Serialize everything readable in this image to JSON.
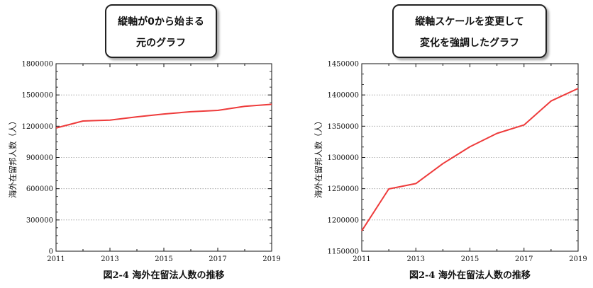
{
  "callouts": {
    "left": [
      "縦軸が0から始まる",
      "元のグラフ"
    ],
    "right": [
      "縦軸スケールを変更して",
      "変化を強調したグラフ"
    ]
  },
  "chart_data": [
    {
      "type": "line",
      "callout": "縦軸が0から始まる元のグラフ",
      "caption": "図2-4  海外在留法人数の推移",
      "ylabel": "海外在留邦人数（人）",
      "x": [
        2011,
        2012,
        2013,
        2014,
        2015,
        2016,
        2017,
        2018,
        2019
      ],
      "xticks": [
        "2011",
        "2013",
        "2015",
        "2017",
        "2019"
      ],
      "xlim": [
        2011,
        2019
      ],
      "ylim": [
        0,
        1800000
      ],
      "yticks": [
        0,
        300000,
        600000,
        900000,
        1200000,
        1500000,
        1800000
      ],
      "yminor_per_major": 3,
      "grid": true,
      "series": [
        {
          "values": [
            1182557,
            1249577,
            1258263,
            1290175,
            1317078,
            1338477,
            1351970,
            1390370,
            1410356
          ],
          "color": "#ee3b3b"
        }
      ]
    },
    {
      "type": "line",
      "callout": "縦軸スケールを変更して変化を強調したグラフ",
      "caption": "図2-4  海外在留法人数の推移",
      "ylabel": "海外在留邦人数（人）",
      "x": [
        2011,
        2012,
        2013,
        2014,
        2015,
        2016,
        2017,
        2018,
        2019
      ],
      "xticks": [
        "2011",
        "2013",
        "2015",
        "2017",
        "2019"
      ],
      "xlim": [
        2011,
        2019
      ],
      "ylim": [
        1150000,
        1450000
      ],
      "yticks": [
        1150000,
        1200000,
        1250000,
        1300000,
        1350000,
        1400000,
        1450000
      ],
      "yminor_per_major": 2,
      "grid": true,
      "series": [
        {
          "values": [
            1182557,
            1249577,
            1258263,
            1290175,
            1317078,
            1338477,
            1351970,
            1390370,
            1410356
          ],
          "color": "#ee3b3b"
        }
      ]
    }
  ]
}
